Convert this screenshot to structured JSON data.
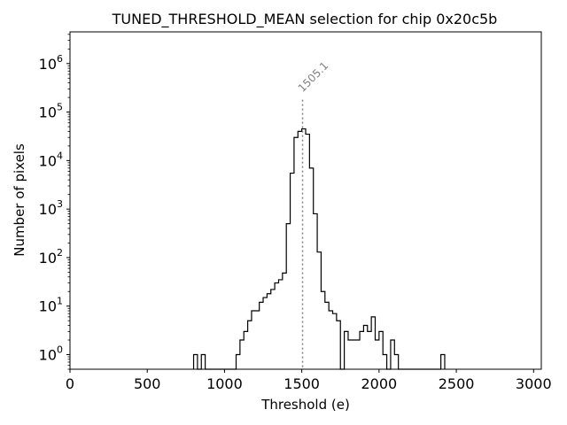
{
  "chart_data": {
    "type": "histogram",
    "title": "TUNED_THRESHOLD_MEAN selection for chip 0x20c5b",
    "xlabel": "Threshold (e)",
    "ylabel": "Number of pixels",
    "xlim": [
      0,
      3050
    ],
    "ylim": [
      0.5,
      4500000
    ],
    "y_scale": "log",
    "x_ticks": [
      "0",
      "500",
      "1000",
      "1500",
      "2000",
      "2500",
      "3000"
    ],
    "x_tick_values": [
      0,
      500,
      1000,
      1500,
      2000,
      2500,
      3000
    ],
    "y_ticks": [
      {
        "value": 1,
        "base": "10",
        "exp": "0"
      },
      {
        "value": 10,
        "base": "10",
        "exp": "1"
      },
      {
        "value": 100,
        "base": "10",
        "exp": "2"
      },
      {
        "value": 1000,
        "base": "10",
        "exp": "3"
      },
      {
        "value": 10000,
        "base": "10",
        "exp": "4"
      },
      {
        "value": 100000,
        "base": "10",
        "exp": "5"
      },
      {
        "value": 1000000,
        "base": "10",
        "exp": "6"
      }
    ],
    "grid": false,
    "bin_edges_start": 800,
    "bin_width": 25,
    "counts": [
      1,
      0,
      1,
      0,
      0,
      0,
      0,
      0,
      0,
      0,
      0,
      1,
      2,
      3,
      5,
      8,
      8,
      12,
      15,
      18,
      22,
      30,
      35,
      48,
      500,
      5500,
      30000,
      40000,
      45000,
      35000,
      7000,
      800,
      130,
      20,
      12,
      8,
      7,
      5,
      0,
      3,
      2,
      2,
      2,
      3,
      4,
      3,
      6,
      2,
      3,
      1,
      0,
      2,
      1,
      0,
      0,
      0,
      0,
      0,
      0,
      0,
      0,
      0,
      0,
      0,
      1
    ],
    "series": [
      {
        "name": "",
        "color": "#000000"
      }
    ],
    "annotations": [
      {
        "text": "1505.1",
        "x": 1505.1,
        "line_top_y": 180000,
        "line_style": "dotted",
        "color": "#808080"
      }
    ]
  }
}
